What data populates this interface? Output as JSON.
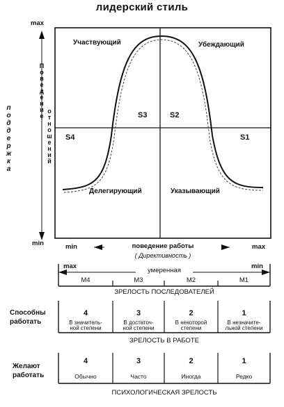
{
  "title": "лидерский стиль",
  "y_axis": {
    "max": "max",
    "min": "min",
    "outer_label": "поддержка",
    "inner_label_1": "Поведение",
    "inner_label_2": "отношений"
  },
  "quadrants": {
    "q_top_left": "Участвующий",
    "q_top_right": "Убеждающий",
    "q_bottom_left": "Делегирующий",
    "q_bottom_right": "Указывающий"
  },
  "styles": {
    "s1": "S1",
    "s2": "S2",
    "s3": "S3",
    "s4": "S4"
  },
  "x_axis": {
    "min": "min",
    "max": "max",
    "label": "поведение работы",
    "sublabel": "( Директивность )"
  },
  "maturity": {
    "max": "max",
    "min": "min",
    "moderate": "умеренная",
    "levels": [
      "M4",
      "M3",
      "M2",
      "M1"
    ],
    "caption": "ЗРЕЛОСТЬ ПОСЛЕДОВАТЕЛЕЙ"
  },
  "ability": {
    "row_label_1": "Способны",
    "row_label_2": "работать",
    "numbers": [
      "4",
      "3",
      "2",
      "1"
    ],
    "cells": [
      [
        "В значитель-",
        "ной степени"
      ],
      [
        "В достаточ-",
        "ной степени"
      ],
      [
        "В некоторой",
        "степени"
      ],
      [
        "В незначите-",
        "льной степени"
      ]
    ],
    "caption": "ЗРЕЛОСТЬ В РАБОТЕ"
  },
  "willingness": {
    "row_label_1": "Желают",
    "row_label_2": "работать",
    "numbers": [
      "4",
      "3",
      "2",
      "1"
    ],
    "cells": [
      "Обычно",
      "Часто",
      "Иногда",
      "Редко"
    ],
    "caption": "ПСИХОЛОГИЧЕСКАЯ ЗРЕЛОСТЬ"
  }
}
